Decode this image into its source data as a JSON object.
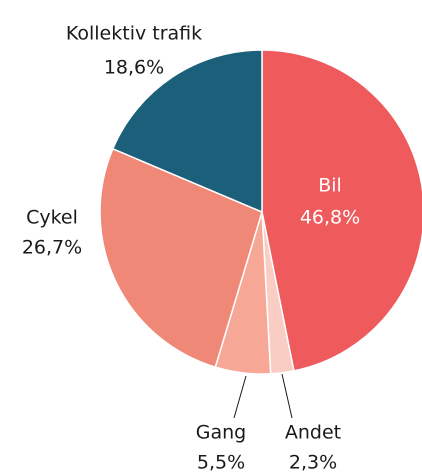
{
  "chart_data": {
    "type": "pie",
    "categories": [
      "Bil",
      "Andet",
      "Gang",
      "Cykel",
      "Kollektiv trafik"
    ],
    "values": [
      46.8,
      2.3,
      5.5,
      26.7,
      18.6
    ],
    "value_labels": [
      "46,8%",
      "2,3%",
      "5,5%",
      "26,7%",
      "18,6%"
    ],
    "colors": [
      "#ef5a5c",
      "#f9cdc4",
      "#f6a795",
      "#f08878",
      "#1b5f7b"
    ]
  }
}
